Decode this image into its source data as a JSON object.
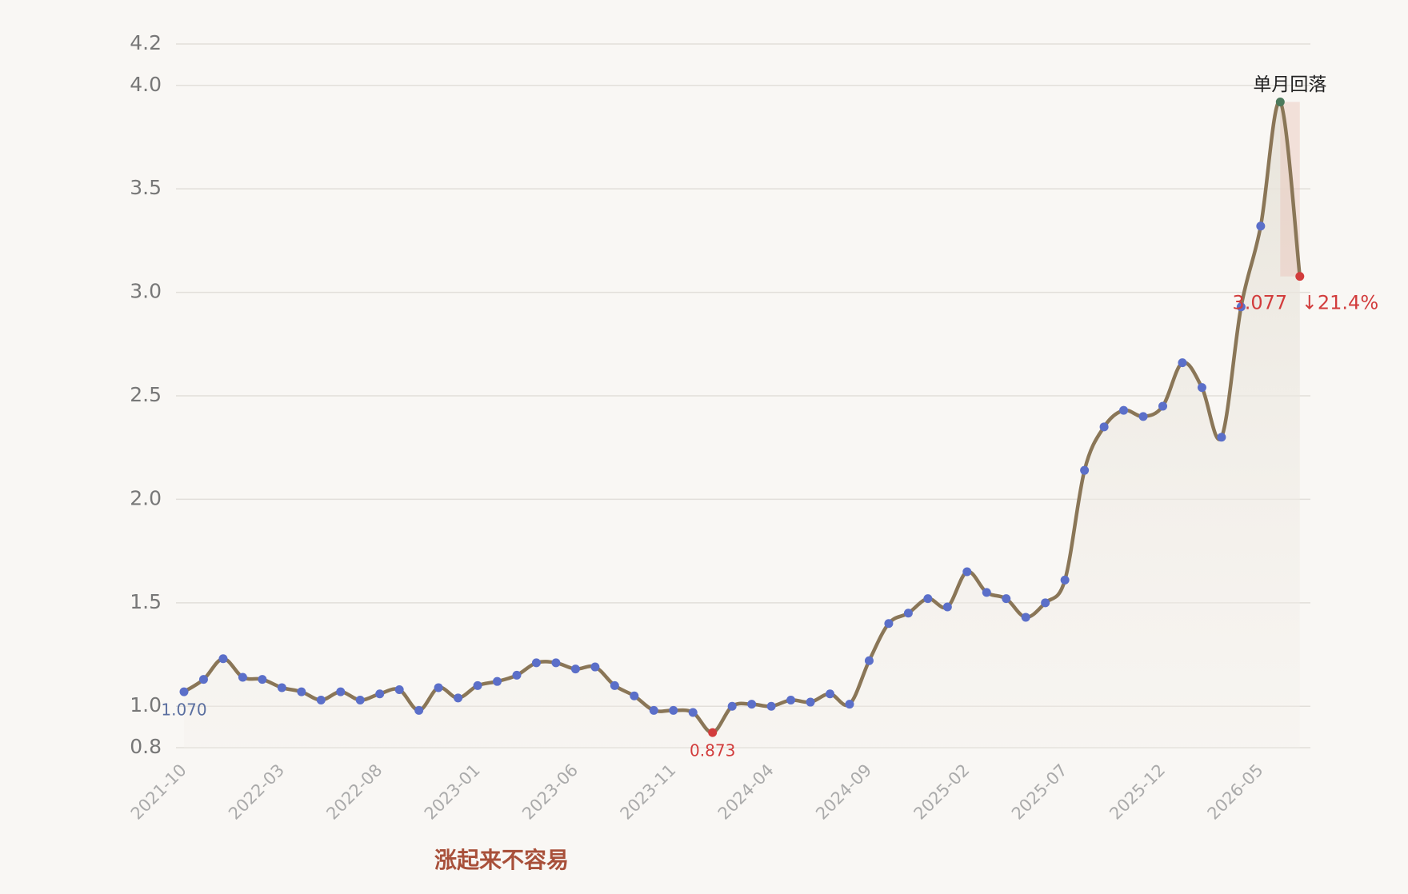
{
  "chart_data": {
    "type": "line",
    "categories": [
      "2021-10",
      null,
      null,
      null,
      null,
      "2022-03",
      null,
      null,
      null,
      null,
      "2022-08",
      null,
      null,
      null,
      null,
      "2023-01",
      null,
      null,
      null,
      null,
      "2023-06",
      null,
      null,
      null,
      null,
      "2023-11",
      null,
      null,
      null,
      null,
      "2024-04",
      null,
      null,
      null,
      null,
      "2024-09",
      null,
      null,
      null,
      null,
      "2025-02",
      null,
      null,
      null,
      null,
      "2025-07",
      null,
      null,
      null,
      null,
      "2025-12",
      null,
      null,
      null,
      null,
      "2026-05",
      null,
      null
    ],
    "values": [
      1.07,
      1.13,
      1.23,
      1.14,
      1.13,
      1.09,
      1.07,
      1.03,
      1.07,
      1.03,
      1.06,
      1.08,
      0.98,
      1.09,
      1.04,
      1.1,
      1.12,
      1.15,
      1.21,
      1.21,
      1.18,
      1.19,
      1.1,
      1.05,
      0.98,
      0.98,
      0.97,
      0.873,
      1.0,
      1.01,
      1.0,
      1.03,
      1.02,
      1.06,
      1.01,
      1.22,
      1.4,
      1.45,
      1.52,
      1.48,
      1.65,
      1.55,
      1.52,
      1.43,
      1.5,
      1.61,
      2.14,
      2.35,
      2.43,
      2.4,
      2.45,
      2.66,
      2.54,
      2.3,
      2.93,
      3.32,
      3.92,
      3.077
    ],
    "value_labels": [
      "1.070",
      null,
      null,
      null,
      null,
      null,
      null,
      null,
      null,
      null,
      null,
      null,
      null,
      null,
      null,
      null,
      null,
      null,
      null,
      null,
      null,
      null,
      null,
      null,
      null,
      null,
      null,
      "0.873",
      null,
      null,
      null,
      null,
      null,
      null,
      null,
      null,
      null,
      null,
      null,
      null,
      null,
      null,
      null,
      null,
      null,
      null,
      null,
      null,
      null,
      null,
      null,
      null,
      null,
      null,
      null,
      null,
      null,
      "3.077"
    ],
    "color": "#8a7657",
    "point_color": "#5b6fc9",
    "ylim": [
      0.8,
      4.2
    ],
    "yticks": [
      0.8,
      {
        "value": 1.0,
        "label": "1.0"
      },
      1.5,
      {
        "value": 2.0,
        "label": "2.0"
      },
      2.5,
      {
        "value": 3.0,
        "label": "3.0"
      },
      3.5,
      {
        "value": 4.0,
        "label": "4.0"
      },
      4.2
    ],
    "grid": true,
    "annotations": [
      "单月回落",
      "↓21.4%"
    ],
    "caption": "涨起来不容易"
  }
}
